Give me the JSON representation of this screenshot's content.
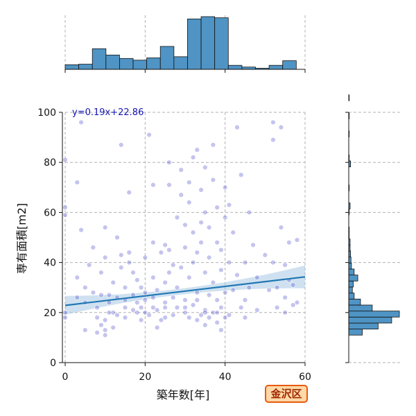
{
  "badge": {
    "label": "金沢区",
    "color": "#e8590c",
    "fill": "#ffd9a8"
  },
  "chart_data": {
    "type": "scatter",
    "title": "",
    "xlabel": "築年数[年]",
    "ylabel": "専有面積[m2]",
    "xlim": [
      0,
      60
    ],
    "ylim": [
      0,
      100
    ],
    "xticks": [
      0,
      20,
      40,
      60
    ],
    "yticks": [
      0,
      20,
      40,
      60,
      80,
      100
    ],
    "grid": true,
    "colors": {
      "points": "#3c3cc8",
      "regression": "#1f77b4",
      "band": "#a8c8e4",
      "hist": "#4f94c4",
      "grid": "#b0b0b0"
    },
    "regression": {
      "equation": "y=0.19x+22.86",
      "slope": 0.19,
      "intercept": 22.86
    },
    "x_histogram": {
      "bin_width": 3.4,
      "start": 0,
      "counts": [
        8,
        9,
        36,
        25,
        19,
        16,
        20,
        40,
        22,
        88,
        92,
        90,
        7,
        4,
        2,
        7,
        15
      ],
      "max": 92
    },
    "y_histogram": {
      "bin_width": 2.4,
      "start": 11,
      "counts": [
        30,
        65,
        95,
        112,
        52,
        26,
        12,
        8,
        10,
        20,
        12,
        6,
        5,
        4,
        3,
        3,
        1,
        1,
        0,
        0,
        1,
        3,
        0,
        0,
        1,
        0,
        0,
        0,
        4,
        1,
        0,
        0,
        0,
        1,
        0,
        0,
        1,
        0,
        0,
        1,
        0
      ]
    },
    "points": [
      [
        0,
        20
      ],
      [
        0,
        18
      ],
      [
        0,
        59
      ],
      [
        0,
        62
      ],
      [
        0,
        81
      ],
      [
        3,
        72
      ],
      [
        3,
        34
      ],
      [
        3,
        26
      ],
      [
        4,
        96
      ],
      [
        4,
        53
      ],
      [
        5,
        24
      ],
      [
        5,
        13
      ],
      [
        5,
        30
      ],
      [
        6,
        39
      ],
      [
        7,
        46
      ],
      [
        7,
        28
      ],
      [
        8,
        12
      ],
      [
        8,
        22
      ],
      [
        8,
        18
      ],
      [
        9,
        36
      ],
      [
        9,
        27
      ],
      [
        9,
        15
      ],
      [
        10,
        13
      ],
      [
        10,
        11
      ],
      [
        10,
        17
      ],
      [
        10,
        42
      ],
      [
        10,
        54
      ],
      [
        11,
        20
      ],
      [
        11,
        24
      ],
      [
        11,
        27
      ],
      [
        12,
        32
      ],
      [
        12,
        14
      ],
      [
        13,
        19
      ],
      [
        13,
        26
      ],
      [
        13,
        50
      ],
      [
        14,
        43
      ],
      [
        14,
        87
      ],
      [
        14,
        38
      ],
      [
        15,
        22
      ],
      [
        15,
        30
      ],
      [
        15,
        18
      ],
      [
        16,
        40
      ],
      [
        16,
        68
      ],
      [
        16,
        44
      ],
      [
        17,
        21
      ],
      [
        17,
        27
      ],
      [
        17,
        36
      ],
      [
        18,
        24
      ],
      [
        18,
        20
      ],
      [
        18,
        33
      ],
      [
        19,
        22
      ],
      [
        19,
        17
      ],
      [
        19,
        30
      ],
      [
        20,
        25
      ],
      [
        20,
        42
      ],
      [
        20,
        28
      ],
      [
        21,
        19
      ],
      [
        21,
        91
      ],
      [
        22,
        71
      ],
      [
        22,
        48
      ],
      [
        22,
        26
      ],
      [
        22,
        34
      ],
      [
        23,
        14
      ],
      [
        23,
        21
      ],
      [
        23,
        29
      ],
      [
        24,
        17
      ],
      [
        24,
        44
      ],
      [
        25,
        32
      ],
      [
        25,
        47
      ],
      [
        25,
        24
      ],
      [
        25,
        22
      ],
      [
        26,
        71
      ],
      [
        26,
        80
      ],
      [
        26,
        45
      ],
      [
        26,
        36
      ],
      [
        27,
        19
      ],
      [
        27,
        26
      ],
      [
        27,
        39
      ],
      [
        28,
        30
      ],
      [
        28,
        22
      ],
      [
        28,
        58
      ],
      [
        29,
        77
      ],
      [
        29,
        67
      ],
      [
        29,
        38
      ],
      [
        30,
        20
      ],
      [
        30,
        55
      ],
      [
        30,
        46
      ],
      [
        30,
        25
      ],
      [
        31,
        18
      ],
      [
        31,
        64
      ],
      [
        31,
        72
      ],
      [
        31,
        34
      ],
      [
        32,
        82
      ],
      [
        32,
        52
      ],
      [
        32,
        40
      ],
      [
        32,
        23
      ],
      [
        33,
        85
      ],
      [
        33,
        17
      ],
      [
        33,
        44
      ],
      [
        33,
        28
      ],
      [
        34,
        56
      ],
      [
        34,
        48
      ],
      [
        34,
        19
      ],
      [
        34,
        69
      ],
      [
        35,
        60
      ],
      [
        35,
        36
      ],
      [
        35,
        15
      ],
      [
        35,
        78
      ],
      [
        35,
        21
      ],
      [
        36,
        27
      ],
      [
        36,
        42
      ],
      [
        36,
        18
      ],
      [
        36,
        54
      ],
      [
        37,
        73
      ],
      [
        37,
        32
      ],
      [
        37,
        20
      ],
      [
        37,
        87
      ],
      [
        38,
        16
      ],
      [
        38,
        48
      ],
      [
        38,
        25
      ],
      [
        38,
        62
      ],
      [
        39,
        22
      ],
      [
        39,
        37
      ],
      [
        39,
        13
      ],
      [
        39,
        45
      ],
      [
        40,
        70
      ],
      [
        40,
        58
      ],
      [
        40,
        28
      ],
      [
        40,
        18
      ],
      [
        41,
        19
      ],
      [
        41,
        40
      ],
      [
        41,
        63
      ],
      [
        42,
        52
      ],
      [
        42,
        29
      ],
      [
        43,
        94
      ],
      [
        43,
        35
      ],
      [
        44,
        75
      ],
      [
        44,
        22
      ],
      [
        45,
        40
      ],
      [
        45,
        18
      ],
      [
        46,
        60
      ],
      [
        46,
        30
      ],
      [
        47,
        47
      ],
      [
        48,
        34
      ],
      [
        48,
        21
      ],
      [
        50,
        43
      ],
      [
        51,
        29
      ],
      [
        52,
        96
      ],
      [
        52,
        89
      ],
      [
        52,
        40
      ],
      [
        53,
        22
      ],
      [
        53,
        30
      ],
      [
        54,
        54
      ],
      [
        54,
        94
      ],
      [
        55,
        39
      ],
      [
        55,
        26
      ],
      [
        55,
        20
      ],
      [
        56,
        48
      ],
      [
        56,
        33
      ],
      [
        57,
        31
      ],
      [
        57,
        23
      ],
      [
        58,
        49
      ],
      [
        58,
        24
      ],
      [
        45,
        25
      ],
      [
        35,
        20
      ],
      [
        30,
        22
      ],
      [
        20,
        20
      ],
      [
        15,
        25
      ],
      [
        12,
        20
      ],
      [
        25,
        18
      ],
      [
        38,
        20
      ],
      [
        33,
        25
      ],
      [
        22,
        22
      ]
    ]
  }
}
